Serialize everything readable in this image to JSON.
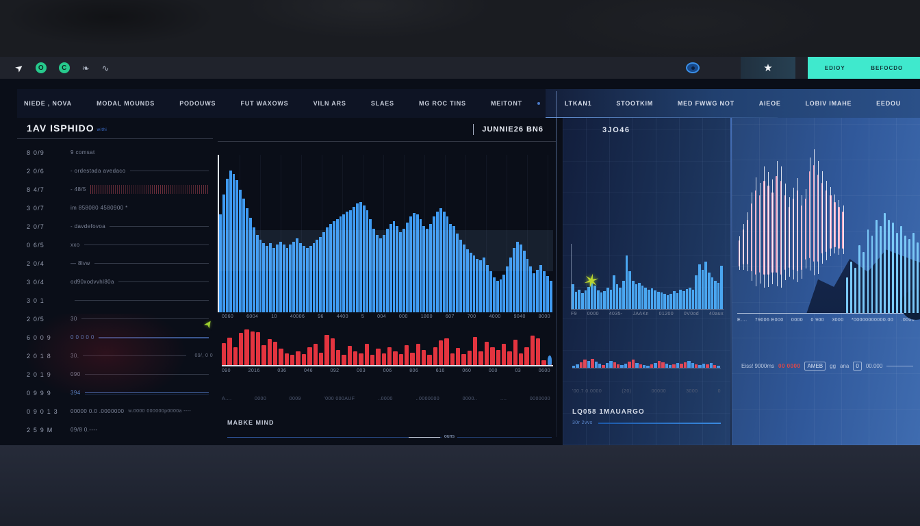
{
  "topbar": {
    "cursor_icon": "➤",
    "badge1": "O",
    "badge2": "C",
    "leaf_icon": "❧",
    "pulse_icon": "∿",
    "star_icon": "★",
    "edit_button": "EDIOY",
    "secondary_button": "BEFOCDO",
    "accent_teal": "#3fe9cd",
    "accent_green": "#27c98c"
  },
  "icons": {
    "burst": "✶",
    "green_arrow": "➤"
  },
  "nav": {
    "left_items": [
      "NIEDE , NOVA",
      "MODAL MOUNDS",
      "PODOUWS",
      "FUT WAXOWS",
      "VILN ARS",
      "SLAES",
      "MG ROC TINS",
      "MEITONT"
    ],
    "right_items": [
      "LTKAN1",
      "STOOTKIM",
      "MED FWWG NOT",
      "AIEOE",
      "LOBIV IMAHE",
      "EEDOU"
    ]
  },
  "watchlist": {
    "title": "1AV ISPHIDO",
    "title_suffix": "withi",
    "rows": [
      {
        "label": "8 0/9",
        "value": "9 comsat",
        "line": false
      },
      {
        "label": "2 0/6",
        "value": "- ordestada avedaco",
        "line": true
      },
      {
        "label": "8 4/7",
        "value": "- 48/5",
        "spark": true,
        "line": false
      },
      {
        "label": "3 0/7",
        "value": "im 858080  4580900 *",
        "line": false
      },
      {
        "label": "2 0/7",
        "value": "- davdefovoa",
        "line": true
      },
      {
        "label": "0 6/5",
        "value": "xxo",
        "line": true
      },
      {
        "label": "2 0/4",
        "value": "—  8lvw",
        "line": true
      },
      {
        "label": "3 0/4",
        "value": "od90xodvvhl80a",
        "line": true
      },
      {
        "label": "3 0 1",
        "value": "",
        "line": true
      },
      {
        "label": "2 0/5",
        "value": "30",
        "line": true
      },
      {
        "label": "6 0 0 9",
        "value": "0 0 0 0 0",
        "line": true,
        "blue": true
      },
      {
        "label": "2 0 1 8",
        "value": "30.",
        "line": true,
        "sub": "09/, 0 0"
      },
      {
        "label": "2 0 1 9",
        "value": "090",
        "line": true
      },
      {
        "label": "0 9 9 9",
        "value": "394",
        "line": true,
        "blue": true
      },
      {
        "label": "0 9 0 1 3",
        "value": "00000    0.0    .0000000",
        "line": false,
        "sub": "w.0000  000000p0000a ----"
      },
      {
        "label": "2 5 9 M",
        "value": "09/8  0.----",
        "line": false
      }
    ]
  },
  "center": {
    "header_right": "JUNNIE26 BN6",
    "axis_top": [
      "0060",
      "6004",
      "10",
      "40006",
      "96",
      "4400",
      "5",
      "004",
      "000",
      "1800",
      "607",
      "700",
      "4000",
      "9040",
      "8000"
    ],
    "axis_mid": [
      "090",
      "2016",
      "036",
      "046",
      "092",
      "003",
      "006",
      "806",
      "616",
      "060",
      "000",
      "03",
      "0600"
    ],
    "labels_row": [
      "A....",
      "0000",
      "0009",
      "'000 000AUF",
      "..0000",
      "..0000000",
      "0000..",
      "....",
      "0000000"
    ],
    "footer_label": "MABKE MIND",
    "footer_mid": "ouns"
  },
  "panel3": {
    "title": "3JO46",
    "axis": [
      "F9",
      "0000",
      "4035-",
      "JAAKn",
      "01200",
      "0V0od",
      "40aux"
    ],
    "labels_row": [
      "'00.7.0.0000",
      "(20)",
      "00000",
      "3000",
      "0"
    ],
    "footer_label": "LQ058 1MAUARGO",
    "footer_sub": "30r 2vvs"
  },
  "right_panel": {
    "axis": [
      "E....",
      "79006 E000",
      "0000",
      "0 900",
      "3000",
      "*00000000000.00",
      ".0000"
    ],
    "footer_text_1": "Eiss! 9000ms",
    "footer_red": "00 0000",
    "footer_badge": "AMEB",
    "footer_text_2": "gg",
    "footer_text_3": "ana",
    "footer_badge2": "0",
    "footer_text_4": "00.000"
  },
  "chart_data": [
    {
      "name": "main-price-chart",
      "type": "bars",
      "color": "#3f9bf2",
      "ylim": [
        0,
        100
      ],
      "values": [
        62,
        75,
        85,
        90,
        88,
        84,
        78,
        72,
        66,
        60,
        54,
        49,
        46,
        44,
        42,
        44,
        41,
        43,
        45,
        43,
        41,
        43,
        45,
        47,
        44,
        42,
        41,
        42,
        44,
        46,
        48,
        51,
        54,
        56,
        58,
        59,
        61,
        62,
        64,
        65,
        67,
        69,
        70,
        68,
        65,
        59,
        53,
        49,
        47,
        49,
        53,
        56,
        58,
        55,
        51,
        53,
        57,
        61,
        63,
        62,
        59,
        55,
        53,
        56,
        61,
        64,
        66,
        64,
        61,
        56,
        55,
        50,
        46,
        43,
        40,
        38,
        36,
        34,
        33,
        35,
        30,
        26,
        22,
        20,
        21,
        24,
        29,
        35,
        41,
        45,
        43,
        39,
        34,
        29,
        25,
        27,
        30,
        26,
        23,
        20
      ]
    },
    {
      "name": "volume-chart",
      "type": "bars",
      "color": "#e3343f",
      "ylim": [
        0,
        100
      ],
      "values": [
        58,
        72,
        46,
        84,
        92,
        88,
        86,
        52,
        68,
        60,
        42,
        30,
        26,
        36,
        28,
        46,
        56,
        32,
        78,
        70,
        40,
        26,
        50,
        36,
        30,
        56,
        26,
        42,
        30,
        46,
        36,
        28,
        52,
        32,
        56,
        40,
        26,
        46,
        64,
        70,
        30,
        44,
        28,
        38,
        74,
        36,
        60,
        46,
        40,
        56,
        36,
        66,
        30,
        46,
        76,
        70,
        12,
        8
      ]
    },
    {
      "name": "distribution-chart",
      "type": "bars",
      "color": "#4aa6f0",
      "ylim": [
        0,
        100
      ],
      "values": [
        38,
        26,
        30,
        24,
        28,
        34,
        40,
        36,
        28,
        25,
        27,
        33,
        29,
        52,
        38,
        33,
        43,
        82,
        58,
        43,
        38,
        40,
        36,
        33,
        30,
        32,
        28,
        26,
        25,
        23,
        21,
        23,
        27,
        24,
        29,
        27,
        31,
        33,
        29,
        52,
        68,
        60,
        73,
        56,
        48,
        43,
        40,
        66
      ]
    },
    {
      "name": "mini-volume-strip",
      "type": "bars",
      "red": "#e04858",
      "blue": "#4a9ae8",
      "ylim": [
        0,
        100
      ],
      "colors": "bbrrbrbbrbbrrbbrrbrbbrbrrbbrbrrbbrbbrbrb",
      "values": [
        22,
        35,
        55,
        85,
        70,
        95,
        62,
        42,
        28,
        48,
        70,
        55,
        35,
        28,
        42,
        62,
        85,
        48,
        35,
        28,
        22,
        35,
        48,
        70,
        55,
        42,
        28,
        35,
        48,
        42,
        55,
        70,
        48,
        35,
        28,
        42,
        35,
        48,
        28,
        22
      ]
    },
    {
      "name": "candlestick-chart",
      "type": "candlestick",
      "color": "#f0a8c3",
      "blue_color": "#7ac8f7",
      "candles": [
        [
          55,
          16
        ],
        [
          48,
          22
        ],
        [
          42,
          28
        ],
        [
          32,
          42
        ],
        [
          24,
          52
        ],
        [
          27,
          48
        ],
        [
          18,
          58
        ],
        [
          21,
          55
        ],
        [
          25,
          50
        ],
        [
          15,
          60
        ],
        [
          18,
          58
        ],
        [
          27,
          46
        ],
        [
          34,
          38
        ],
        [
          29,
          44
        ],
        [
          24,
          50
        ],
        [
          33,
          40
        ],
        [
          29,
          38
        ],
        [
          12,
          54
        ],
        [
          8,
          60
        ],
        [
          14,
          54
        ],
        [
          19,
          44
        ],
        [
          24,
          38
        ],
        [
          27,
          33
        ],
        [
          31,
          28
        ],
        [
          34,
          26
        ],
        [
          37,
          23
        ]
      ],
      "blue_bars": [
        22,
        32,
        28,
        42,
        38,
        52,
        48,
        58,
        54,
        62,
        58,
        56,
        50,
        54,
        48,
        46,
        50,
        44
      ]
    }
  ]
}
